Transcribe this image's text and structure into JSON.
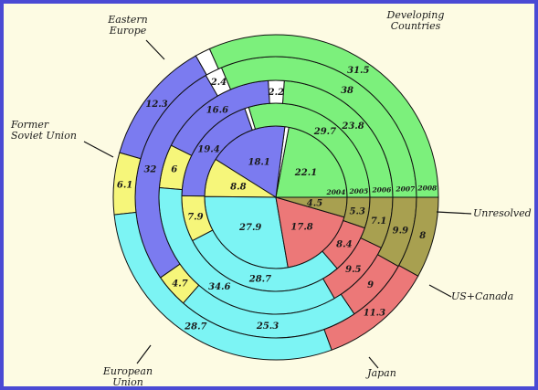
{
  "chart_data": {
    "type": "pie",
    "subtype": "concentric-rings",
    "rings": [
      "2004",
      "2005",
      "2006",
      "2007",
      "2008"
    ],
    "categories": [
      {
        "name": "Developing Countries",
        "color": "#7cf07c",
        "values": [
          22.1,
          29.7,
          23.8,
          38,
          31.5
        ]
      },
      {
        "name": "Unresolved",
        "color": "#ffffff",
        "values": [
          0.9,
          0.7,
          2.2,
          2.4,
          1.5
        ]
      },
      {
        "name": "US+Canada",
        "color": "#7b7bf0",
        "values": [
          18.1,
          19.4,
          16.6,
          32,
          12.3
        ]
      },
      {
        "name": "Japan",
        "color": "#f6f67a",
        "values": [
          8.8,
          7.9,
          6,
          4.7,
          6.1
        ]
      },
      {
        "name": "European Union",
        "color": "#7cf4f4",
        "values": [
          27.9,
          28.7,
          34.6,
          25.3,
          28.7
        ]
      },
      {
        "name": "Former Soviet Union",
        "color": "#ec7878",
        "values": [
          17.8,
          8.4,
          9.5,
          9,
          11.3
        ]
      },
      {
        "name": "Eastern Europe",
        "color": "#a8a050",
        "values": [
          4.5,
          5.3,
          7.1,
          9.9,
          8
        ]
      }
    ],
    "legend": "callout labels around rings"
  }
}
